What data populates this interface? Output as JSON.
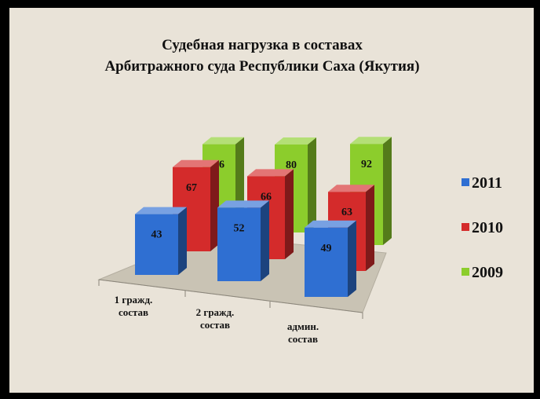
{
  "chart_data": {
    "type": "bar3d",
    "title": "Судебная нагрузка  в составах\nАрбитражного  суда Республики Саха (Якутия)",
    "categories": [
      "1 гражд. состав",
      "2 гражд. состав",
      "админ. состав"
    ],
    "series": [
      {
        "name": "2011",
        "color": "#2f6fd2",
        "values": [
          43,
          52,
          49
        ]
      },
      {
        "name": "2010",
        "color": "#d42b2b",
        "values": [
          67,
          66,
          63
        ]
      },
      {
        "name": "2009",
        "color": "#8ccd2c",
        "values": [
          76,
          80,
          92
        ]
      }
    ],
    "legend": "right"
  }
}
